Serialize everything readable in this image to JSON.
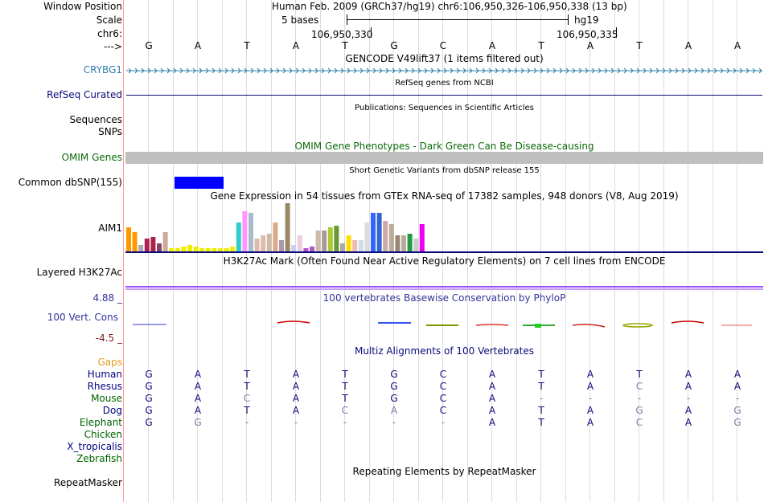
{
  "header": {
    "window_position_label": "Window Position",
    "scale_label": "Scale",
    "chrom_label": "chr6:",
    "arrow_label": "--->",
    "position_text": "Human Feb. 2009 (GRCh37/hg19)   chr6:106,950,326-106,950,338 (13 bp)",
    "scale_text": "5 bases",
    "assembly": "hg19",
    "coord1": "106,950,330",
    "coord2": "106,950,335"
  },
  "reference_bases": [
    "G",
    "A",
    "T",
    "A",
    "T",
    "G",
    "C",
    "A",
    "T",
    "A",
    "T",
    "A",
    "A"
  ],
  "tracks": {
    "gencode": {
      "title": "GENCODE V49lift37 (1 items filtered out)",
      "gene_label": "CRYBG1"
    },
    "refseq": {
      "title": "RefSeq genes from NCBI",
      "label": "RefSeq Curated"
    },
    "publications": {
      "title": "Publications: Sequences in Scientific Articles"
    },
    "sequences": {
      "label": "Sequences"
    },
    "snps": {
      "label": "SNPs"
    },
    "omim": {
      "title": "OMIM Gene Phenotypes - Dark Green Can Be Disease-causing",
      "label": "OMIM Genes"
    },
    "dbsnp": {
      "title": "Short Genetic Variants from dbSNP release 155",
      "label": "Common dbSNP(155)"
    },
    "gtex": {
      "title": "Gene Expression in 54 tissues from GTEx RNA-seq of 17382 samples, 948 donors (V8, Aug 2019)",
      "label": "AIM1"
    },
    "h3k27ac": {
      "title": "H3K27Ac Mark (Often Found Near Active Regulatory Elements) on 7 cell lines from ENCODE",
      "label": "Layered H3K27Ac"
    },
    "phylop": {
      "title": "100 vertebrates Basewise Conservation by PhyloP",
      "label": "100 Vert. Cons",
      "max": "4.88 _",
      "min": "-4.5 _"
    },
    "multiz": {
      "title": "Multiz Alignments of 100 Vertebrates",
      "gaps_label": "Gaps"
    },
    "repeatmasker": {
      "title": "Repeating Elements by RepeatMasker",
      "label": "RepeatMasker"
    }
  },
  "gtex_bars": [
    {
      "h": 30,
      "c": "#ff9900"
    },
    {
      "h": 24,
      "c": "#ff9900"
    },
    {
      "h": 8,
      "c": "#aaaaaa"
    },
    {
      "h": 16,
      "c": "#aa2255"
    },
    {
      "h": 18,
      "c": "#aa2244"
    },
    {
      "h": 10,
      "c": "#884466"
    },
    {
      "h": 24,
      "c": "#ccaa99"
    },
    {
      "h": 4,
      "c": "#eeee00"
    },
    {
      "h": 4,
      "c": "#eeee00"
    },
    {
      "h": 6,
      "c": "#eeee00"
    },
    {
      "h": 8,
      "c": "#eeee00"
    },
    {
      "h": 6,
      "c": "#eeee00"
    },
    {
      "h": 4,
      "c": "#eeee00"
    },
    {
      "h": 4,
      "c": "#eeee00"
    },
    {
      "h": 4,
      "c": "#eeee00"
    },
    {
      "h": 4,
      "c": "#eeee00"
    },
    {
      "h": 4,
      "c": "#eeee00"
    },
    {
      "h": 6,
      "c": "#eeee00"
    },
    {
      "h": 36,
      "c": "#33cccc"
    },
    {
      "h": 50,
      "c": "#ff99ff"
    },
    {
      "h": 48,
      "c": "#aabbcc"
    },
    {
      "h": 16,
      "c": "#ddbbaa"
    },
    {
      "h": 20,
      "c": "#ddbbaa"
    },
    {
      "h": 22,
      "c": "#ccbbaa"
    },
    {
      "h": 36,
      "c": "#ddaa88"
    },
    {
      "h": 14,
      "c": "#aa99aa"
    },
    {
      "h": 60,
      "c": "#998866"
    },
    {
      "h": 8,
      "c": "#ccccee"
    },
    {
      "h": 20,
      "c": "#eeccdd"
    },
    {
      "h": 4,
      "c": "#aa55cc"
    },
    {
      "h": 6,
      "c": "#aa55cc"
    },
    {
      "h": 26,
      "c": "#ccbbaa"
    },
    {
      "h": 26,
      "c": "#aa9999"
    },
    {
      "h": 30,
      "c": "#aacc33"
    },
    {
      "h": 32,
      "c": "#669933"
    },
    {
      "h": 10,
      "c": "#aaaaaa"
    },
    {
      "h": 20,
      "c": "#ffdd00"
    },
    {
      "h": 14,
      "c": "#eebbaa"
    },
    {
      "h": 14,
      "c": "#ccddee"
    },
    {
      "h": 36,
      "c": "#dddddd"
    },
    {
      "h": 48,
      "c": "#3366ff"
    },
    {
      "h": 48,
      "c": "#3366cc"
    },
    {
      "h": 38,
      "c": "#ccaaaa"
    },
    {
      "h": 34,
      "c": "#bbaa99"
    },
    {
      "h": 20,
      "c": "#998877"
    },
    {
      "h": 20,
      "c": "#bbaa99"
    },
    {
      "h": 22,
      "c": "#229944"
    },
    {
      "h": 16,
      "c": "#cccccc"
    },
    {
      "h": 34,
      "c": "#ee00ee"
    }
  ],
  "species": [
    {
      "name": "Human",
      "color": "#000080",
      "bases": [
        "G",
        "A",
        "T",
        "A",
        "T",
        "G",
        "C",
        "A",
        "T",
        "A",
        "T",
        "A",
        "A"
      ],
      "dim": []
    },
    {
      "name": "Rhesus",
      "color": "#000080",
      "bases": [
        "G",
        "A",
        "T",
        "A",
        "T",
        "G",
        "C",
        "A",
        "T",
        "A",
        "C",
        "A",
        "A"
      ],
      "dim": [
        10
      ]
    },
    {
      "name": "Mouse",
      "color": "#006400",
      "bases": [
        "G",
        "A",
        "C",
        "A",
        "T",
        "G",
        "C",
        "A",
        "-",
        "-",
        "-",
        "-",
        "-"
      ],
      "dim": [
        2,
        8,
        9,
        10,
        11,
        12
      ]
    },
    {
      "name": "Dog",
      "color": "#000080",
      "bases": [
        "G",
        "A",
        "T",
        "A",
        "C",
        "A",
        "C",
        "A",
        "T",
        "A",
        "G",
        "A",
        "G"
      ],
      "dim": [
        4,
        5,
        10,
        12
      ]
    },
    {
      "name": "Elephant",
      "color": "#006400",
      "bases": [
        "G",
        "G",
        "-",
        "-",
        "-",
        "-",
        "-",
        "A",
        "T",
        "A",
        "C",
        "A",
        "G"
      ],
      "dim": [
        1,
        2,
        3,
        4,
        5,
        6,
        10,
        12
      ]
    },
    {
      "name": "Chicken",
      "color": "#006400",
      "bases": [],
      "dim": []
    },
    {
      "name": "X_tropicalis",
      "color": "#000080",
      "bases": [],
      "dim": []
    },
    {
      "name": "Zebrafish",
      "color": "#006400",
      "bases": [],
      "dim": []
    }
  ],
  "colors": {
    "gene_blue": "#0a4ca6",
    "refseq_navy": "#0a0a7a",
    "omim_gray": "#bfbfbf",
    "dbsnp_blue": "#0000ff",
    "h3k27ac_purple": "#9b52f7",
    "phylop_label": "#333399",
    "phylop_min": "#7a1a1a"
  }
}
